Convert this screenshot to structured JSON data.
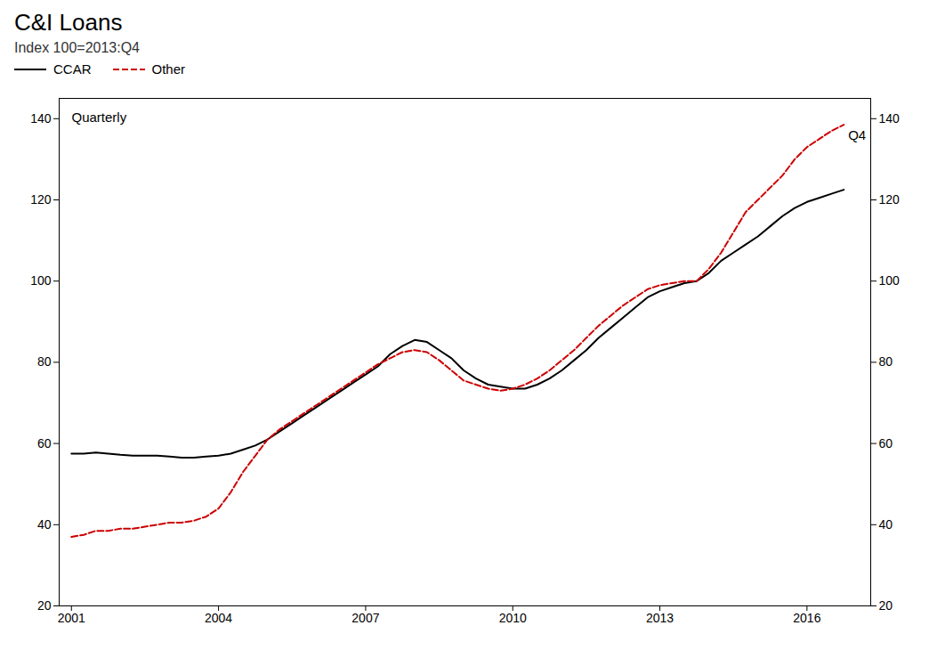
{
  "chart_data": {
    "type": "line",
    "title": "C&I Loans",
    "subtitle": "Index 100=2013:Q4",
    "annotations": [
      "Quarterly",
      "Q4"
    ],
    "x": [
      2001.0,
      2001.25,
      2001.5,
      2001.75,
      2002.0,
      2002.25,
      2002.5,
      2002.75,
      2003.0,
      2003.25,
      2003.5,
      2003.75,
      2004.0,
      2004.25,
      2004.5,
      2004.75,
      2005.0,
      2005.25,
      2005.5,
      2005.75,
      2006.0,
      2006.25,
      2006.5,
      2006.75,
      2007.0,
      2007.25,
      2007.5,
      2007.75,
      2008.0,
      2008.25,
      2008.5,
      2008.75,
      2009.0,
      2009.25,
      2009.5,
      2009.75,
      2010.0,
      2010.25,
      2010.5,
      2010.75,
      2011.0,
      2011.25,
      2011.5,
      2011.75,
      2012.0,
      2012.25,
      2012.5,
      2012.75,
      2013.0,
      2013.25,
      2013.5,
      2013.75,
      2014.0,
      2014.25,
      2014.5,
      2014.75,
      2015.0,
      2015.25,
      2015.5,
      2015.75,
      2016.0,
      2016.25,
      2016.5,
      2016.75
    ],
    "series": [
      {
        "name": "CCAR",
        "color": "#000000",
        "line_style": "solid",
        "values": [
          57.5,
          57.5,
          57.8,
          57.5,
          57.2,
          57.0,
          57.0,
          57.0,
          56.8,
          56.5,
          56.5,
          56.8,
          57.0,
          57.5,
          58.5,
          59.5,
          61.0,
          63.0,
          65.0,
          67.0,
          69.0,
          71.0,
          73.0,
          75.0,
          77.0,
          79.0,
          82.0,
          84.0,
          85.5,
          85.0,
          83.0,
          81.0,
          78.0,
          76.0,
          74.5,
          74.0,
          73.5,
          73.5,
          74.5,
          76.0,
          78.0,
          80.5,
          83.0,
          86.0,
          88.5,
          91.0,
          93.5,
          96.0,
          97.5,
          98.5,
          99.5,
          100.0,
          102.0,
          105.0,
          107.0,
          109.0,
          111.0,
          113.5,
          116.0,
          118.0,
          119.5,
          120.5,
          121.5,
          122.5
        ]
      },
      {
        "name": "Other",
        "color": "#cc0000",
        "line_style": "dashed",
        "values": [
          37.0,
          37.5,
          38.5,
          38.5,
          39.0,
          39.0,
          39.5,
          40.0,
          40.5,
          40.5,
          41.0,
          42.0,
          44.0,
          48.0,
          53.0,
          57.0,
          61.0,
          63.5,
          65.5,
          67.5,
          69.5,
          71.5,
          73.5,
          75.5,
          77.5,
          79.5,
          81.0,
          82.5,
          83.0,
          82.5,
          80.5,
          78.0,
          75.5,
          74.5,
          73.5,
          73.0,
          73.5,
          74.5,
          76.0,
          78.0,
          80.5,
          83.0,
          86.0,
          89.0,
          91.5,
          94.0,
          96.0,
          98.0,
          99.0,
          99.5,
          100.0,
          100.0,
          103.0,
          107.0,
          112.0,
          117.0,
          120.0,
          123.0,
          126.0,
          130.0,
          133.0,
          135.0,
          137.0,
          138.5
        ]
      }
    ],
    "xlim": [
      2000.75,
      2017.3
    ],
    "xticks": [
      2001,
      2004,
      2007,
      2010,
      2013,
      2016
    ],
    "ylim": [
      20,
      145
    ],
    "yticks": [
      20,
      40,
      60,
      80,
      100,
      120,
      140
    ],
    "grid": false
  }
}
